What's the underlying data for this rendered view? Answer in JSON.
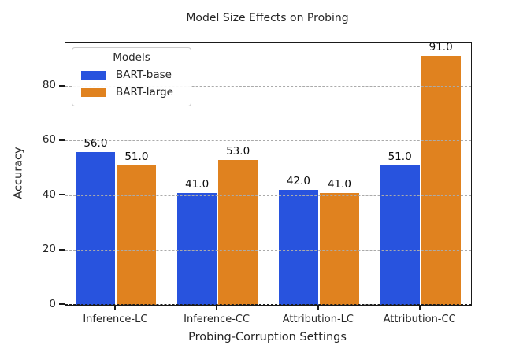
{
  "chart_data": {
    "type": "bar",
    "title": "Model Size Effects on Probing",
    "xlabel": "Probing-Corruption Settings",
    "ylabel": "Accuracy",
    "categories": [
      "Inference-LC",
      "Inference-CC",
      "Attribution-LC",
      "Attribution-CC"
    ],
    "series": [
      {
        "name": "BART-base",
        "color": "#2853de",
        "values": [
          56.0,
          41.0,
          42.0,
          51.0
        ]
      },
      {
        "name": "BART-large",
        "color": "#e0821f",
        "values": [
          51.0,
          53.0,
          41.0,
          91.0
        ]
      }
    ],
    "legend_title": "Models",
    "legend_position": "upper left",
    "ylim": [
      0,
      96
    ],
    "yticks": [
      0,
      20,
      40,
      60,
      80
    ],
    "grid": "horizontal dashed, drawn above bars",
    "value_labels": [
      "56.0",
      "51.0",
      "41.0",
      "53.0",
      "42.0",
      "41.0",
      "51.0",
      "91.0"
    ],
    "colors": {
      "bar_base": "#2853de",
      "bar_large": "#e0821f",
      "grid": "#aaaaaa",
      "spine": "#1a1a1a",
      "text": "#262626",
      "legend_border": "#cccccc"
    }
  }
}
